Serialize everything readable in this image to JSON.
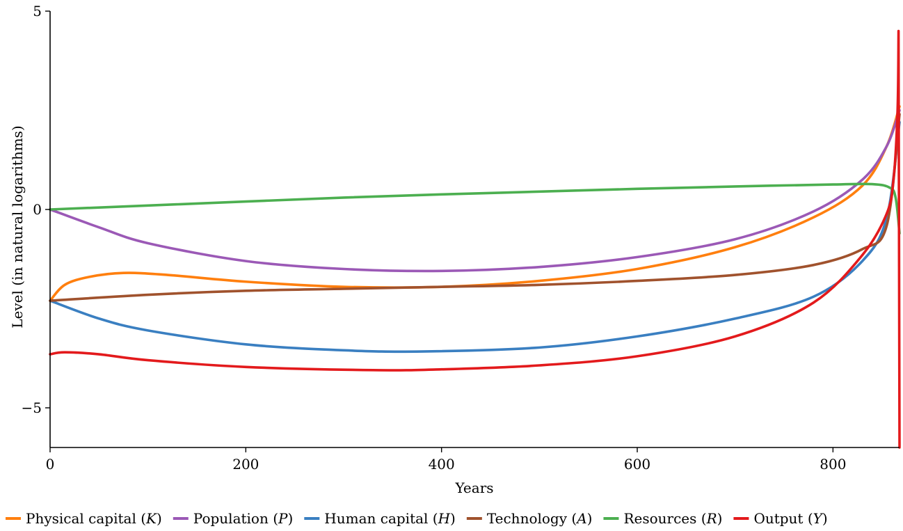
{
  "chart_data": {
    "type": "line",
    "title": "",
    "xlabel": "Years",
    "ylabel": "Level (in natural logarithms)",
    "xlim": [
      0,
      868
    ],
    "ylim": [
      -6,
      5
    ],
    "xticks": [
      0,
      200,
      400,
      600,
      800
    ],
    "yticks": [
      5,
      0,
      -5
    ],
    "ytick_labels": [
      "5",
      "0",
      "−5"
    ],
    "grid": false,
    "legend_position": "bottom",
    "series": [
      {
        "name": "Physical capital",
        "symbol": "K",
        "color": "#ff7f0e",
        "x": [
          0,
          15,
          40,
          75,
          120,
          200,
          300,
          400,
          500,
          600,
          700,
          780,
          830,
          855,
          868
        ],
        "y": [
          -2.3,
          -1.9,
          -1.7,
          -1.6,
          -1.65,
          -1.82,
          -1.95,
          -1.95,
          -1.8,
          -1.5,
          -0.95,
          -0.2,
          0.6,
          1.6,
          2.6
        ]
      },
      {
        "name": "Population",
        "symbol": "P",
        "color": "#9b59b6",
        "x": [
          0,
          50,
          100,
          200,
          300,
          400,
          500,
          600,
          700,
          780,
          830,
          855,
          868
        ],
        "y": [
          0,
          -0.45,
          -0.85,
          -1.3,
          -1.5,
          -1.55,
          -1.45,
          -1.2,
          -0.75,
          -0.05,
          0.75,
          1.6,
          2.5
        ]
      },
      {
        "name": "Human capital",
        "symbol": "H",
        "color": "#3a7fc1",
        "x": [
          0,
          50,
          100,
          200,
          300,
          380,
          500,
          600,
          700,
          780,
          830,
          855,
          868
        ],
        "y": [
          -2.3,
          -2.75,
          -3.05,
          -3.4,
          -3.55,
          -3.58,
          -3.48,
          -3.2,
          -2.75,
          -2.2,
          -1.3,
          -0.2,
          2.2
        ]
      },
      {
        "name": "Technology",
        "symbol": "A",
        "color": "#a0522d",
        "x": [
          0,
          100,
          200,
          300,
          400,
          500,
          600,
          700,
          780,
          830,
          855,
          868
        ],
        "y": [
          -2.3,
          -2.15,
          -2.05,
          -2.0,
          -1.95,
          -1.9,
          -1.8,
          -1.65,
          -1.4,
          -1.0,
          -0.4,
          2.4
        ]
      },
      {
        "name": "Resources",
        "symbol": "R",
        "color": "#4caf50",
        "x": [
          0,
          100,
          200,
          300,
          400,
          500,
          600,
          700,
          800,
          840,
          858,
          864,
          868
        ],
        "y": [
          0,
          0.1,
          0.2,
          0.3,
          0.38,
          0.45,
          0.52,
          0.58,
          0.63,
          0.64,
          0.55,
          0.3,
          -0.6
        ]
      },
      {
        "name": "Output",
        "symbol": "Y",
        "color": "#e31a1c",
        "x": [
          0,
          15,
          50,
          100,
          200,
          330,
          400,
          500,
          600,
          700,
          780,
          830,
          855,
          862,
          866,
          867,
          868
        ],
        "y": [
          -3.65,
          -3.6,
          -3.65,
          -3.8,
          -3.97,
          -4.05,
          -4.03,
          -3.93,
          -3.7,
          -3.2,
          -2.35,
          -1.15,
          -0.1,
          0.8,
          2.5,
          4.5,
          -6
        ]
      }
    ]
  }
}
